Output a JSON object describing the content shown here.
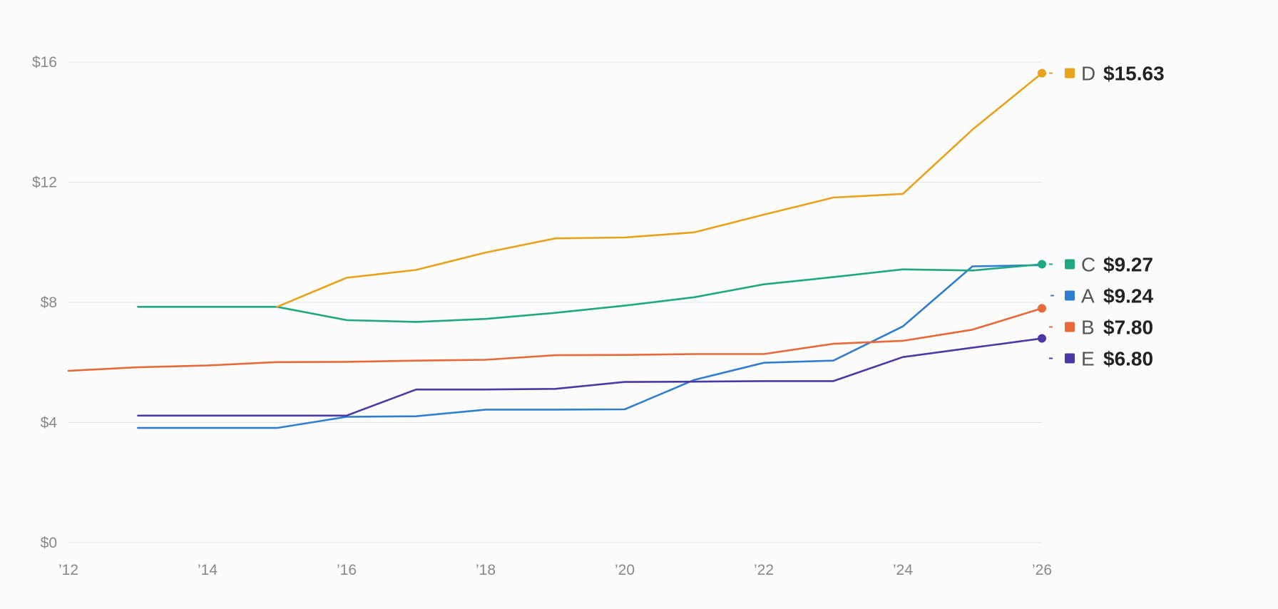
{
  "chart_data": {
    "type": "line",
    "title": "",
    "xlabel": "",
    "ylabel": "",
    "xlim": [
      2012,
      2026
    ],
    "ylim": [
      0,
      16
    ],
    "grid": true,
    "legend_placement": "right, end of lines",
    "x_ticks": [
      {
        "value": 2012,
        "label": "’12"
      },
      {
        "value": 2014,
        "label": "’14"
      },
      {
        "value": 2016,
        "label": "’16"
      },
      {
        "value": 2018,
        "label": "’18"
      },
      {
        "value": 2020,
        "label": "’20"
      },
      {
        "value": 2022,
        "label": "’22"
      },
      {
        "value": 2024,
        "label": "’24"
      },
      {
        "value": 2026,
        "label": "’26"
      }
    ],
    "y_ticks": [
      {
        "value": 0,
        "label": "$0"
      },
      {
        "value": 4,
        "label": "$4"
      },
      {
        "value": 8,
        "label": "$8"
      },
      {
        "value": 12,
        "label": "$12"
      },
      {
        "value": 16,
        "label": "$16"
      }
    ],
    "series": [
      {
        "name": "A",
        "color": "#2f7ed0",
        "end_label": "$9.24",
        "end_marker": false,
        "x": [
          2013,
          2014,
          2015,
          2016,
          2017,
          2018,
          2019,
          2020,
          2021,
          2022,
          2023,
          2024,
          2025,
          2026
        ],
        "values": [
          3.82,
          3.82,
          3.82,
          4.19,
          4.21,
          4.43,
          4.43,
          4.44,
          5.42,
          5.99,
          6.06,
          7.2,
          9.2,
          9.24
        ]
      },
      {
        "name": "B",
        "color": "#e8683a",
        "end_label": "$7.80",
        "end_marker": true,
        "x": [
          2012,
          2013,
          2014,
          2015,
          2016,
          2017,
          2018,
          2019,
          2020,
          2021,
          2022,
          2023,
          2024,
          2025,
          2026
        ],
        "values": [
          5.72,
          5.84,
          5.9,
          6.01,
          6.02,
          6.06,
          6.09,
          6.24,
          6.25,
          6.28,
          6.28,
          6.62,
          6.72,
          7.09,
          7.8
        ]
      },
      {
        "name": "C",
        "color": "#20a880",
        "end_label": "$9.27",
        "end_marker": true,
        "x": [
          2013,
          2014,
          2015,
          2016,
          2017,
          2018,
          2019,
          2020,
          2021,
          2022,
          2023,
          2024,
          2025,
          2026
        ],
        "values": [
          7.85,
          7.85,
          7.85,
          7.41,
          7.35,
          7.45,
          7.65,
          7.89,
          8.17,
          8.6,
          8.84,
          9.1,
          9.06,
          9.27
        ]
      },
      {
        "name": "D",
        "color": "#e8a21c",
        "end_label": "$15.63",
        "end_marker": true,
        "x": [
          2015,
          2016,
          2017,
          2018,
          2019,
          2020,
          2021,
          2022,
          2023,
          2024,
          2025,
          2026
        ],
        "values": [
          7.85,
          8.82,
          9.08,
          9.66,
          10.13,
          10.16,
          10.33,
          10.92,
          11.49,
          11.61,
          13.75,
          15.63
        ]
      },
      {
        "name": "E",
        "color": "#4a3aa8",
        "end_label": "$6.80",
        "end_marker": true,
        "x": [
          2013,
          2014,
          2015,
          2016,
          2017,
          2018,
          2019,
          2020,
          2021,
          2022,
          2023,
          2024,
          2025,
          2026
        ],
        "values": [
          4.23,
          4.23,
          4.23,
          4.23,
          5.1,
          5.1,
          5.12,
          5.35,
          5.36,
          5.38,
          5.38,
          6.18,
          6.49,
          6.8
        ]
      }
    ],
    "legend_order": [
      "D",
      "C",
      "A",
      "B",
      "E"
    ]
  }
}
